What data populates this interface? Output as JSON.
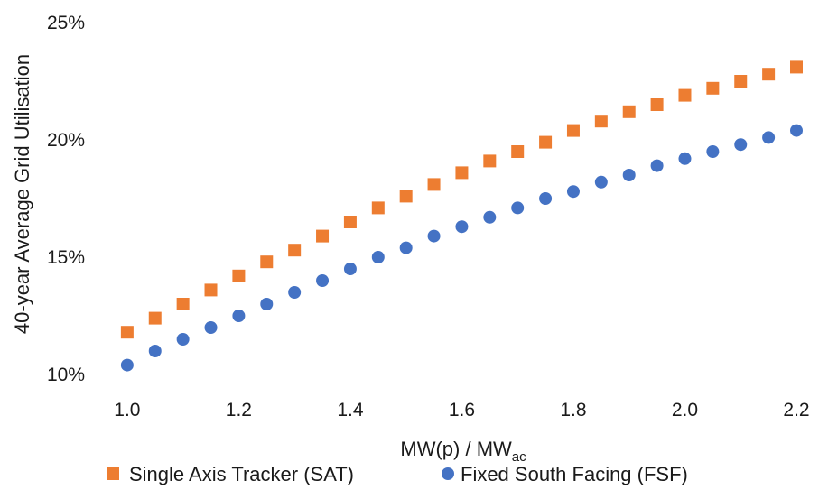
{
  "chart_data": {
    "type": "scatter",
    "xlabel": "MW(p) / MW",
    "xlabel_sub": "ac",
    "ylabel": "40-year Average Grid Utilisation",
    "xlim": [
      0.95,
      2.2
    ],
    "ylim": [
      10,
      25
    ],
    "x_ticks": [
      1.0,
      1.2,
      1.4,
      1.6,
      1.8,
      2.0,
      2.2
    ],
    "x_tick_labels": [
      "1.0",
      "1.2",
      "1.4",
      "1.6",
      "1.8",
      "2.0",
      "2.2"
    ],
    "y_ticks": [
      10,
      15,
      20,
      25
    ],
    "y_tick_labels": [
      "10%",
      "15%",
      "20%",
      "25%"
    ],
    "grid": false,
    "legend_position": "bottom",
    "x": [
      1.0,
      1.05,
      1.1,
      1.15,
      1.2,
      1.25,
      1.3,
      1.35,
      1.4,
      1.45,
      1.5,
      1.55,
      1.6,
      1.65,
      1.7,
      1.75,
      1.8,
      1.85,
      1.9,
      1.95,
      2.0,
      2.05,
      2.1,
      2.15,
      2.2
    ],
    "series": [
      {
        "name": "Single Axis Tracker (SAT)",
        "marker": "square",
        "color": "#ED7D31",
        "values": [
          11.8,
          12.4,
          13.0,
          13.6,
          14.2,
          14.8,
          15.3,
          15.9,
          16.5,
          17.1,
          17.6,
          18.1,
          18.6,
          19.1,
          19.5,
          19.9,
          20.4,
          20.8,
          21.2,
          21.5,
          21.9,
          22.2,
          22.5,
          22.8,
          23.1
        ]
      },
      {
        "name": "Fixed South Facing (FSF)",
        "marker": "circle",
        "color": "#4472C4",
        "values": [
          10.4,
          11.0,
          11.5,
          12.0,
          12.5,
          13.0,
          13.5,
          14.0,
          14.5,
          15.0,
          15.4,
          15.9,
          16.3,
          16.7,
          17.1,
          17.5,
          17.8,
          18.2,
          18.5,
          18.9,
          19.2,
          19.5,
          19.8,
          20.1,
          20.4
        ]
      }
    ]
  }
}
